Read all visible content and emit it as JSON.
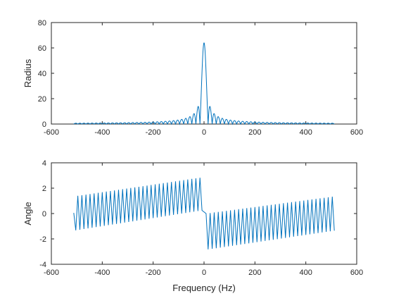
{
  "chart_data": [
    {
      "type": "line",
      "title": "",
      "xlabel": "",
      "ylabel": "Radius",
      "xlim": [
        -600,
        600
      ],
      "ylim": [
        0,
        80
      ],
      "xticks": [
        -600,
        -400,
        -200,
        0,
        200,
        400,
        600
      ],
      "yticks": [
        0,
        20,
        40,
        60,
        80
      ],
      "x_range": [
        -512,
        512
      ],
      "description": "Magnitude of a rectangular pulse spectrum (|sinc|) peaking at 64 at 0 Hz, first nulls near ±16 Hz, sidelobes decaying toward ~1",
      "peak": {
        "x": 0,
        "y": 64
      },
      "main_lobe_null_hz": 16,
      "sidelobe_peaks": [
        {
          "x": 24,
          "y": 13.9
        },
        {
          "x": 40,
          "y": 8.4
        },
        {
          "x": 56,
          "y": 6.0
        },
        {
          "x": 72,
          "y": 4.6
        },
        {
          "x": 104,
          "y": 3.3
        },
        {
          "x": 200,
          "y": 1.7
        },
        {
          "x": 500,
          "y": 1.0
        }
      ],
      "line_color": "#0072BD",
      "grid": false
    },
    {
      "type": "line",
      "title": "",
      "xlabel": "Frequency (Hz)",
      "ylabel": "Angle",
      "xlim": [
        -600,
        600
      ],
      "ylim": [
        -4,
        4
      ],
      "xticks": [
        -600,
        -400,
        -200,
        0,
        200,
        400,
        600
      ],
      "yticks": [
        -4,
        -2,
        0,
        2,
        4
      ],
      "x_range": [
        -512,
        512
      ],
      "description": "Phase oscillating with period ~16 Hz between a lower and upper envelope; left half trends upward to ~2.8 near 0 Hz, right half starts near -2.8 and rises to ~1.3 at 512 Hz",
      "left_segment": {
        "x": [
          -512,
          -8
        ],
        "upper_envelope": [
          1.35,
          2.85
        ],
        "lower_envelope": [
          -1.35,
          0.25
        ]
      },
      "right_segment": {
        "x": [
          8,
          512
        ],
        "upper_envelope": [
          0.0,
          1.35
        ],
        "lower_envelope": [
          -2.85,
          -1.35
        ]
      },
      "endpoints": [
        {
          "x": -512,
          "y": 0.05
        },
        {
          "x": 512,
          "y": -1.35
        }
      ],
      "line_color": "#0072BD",
      "grid": false
    }
  ]
}
